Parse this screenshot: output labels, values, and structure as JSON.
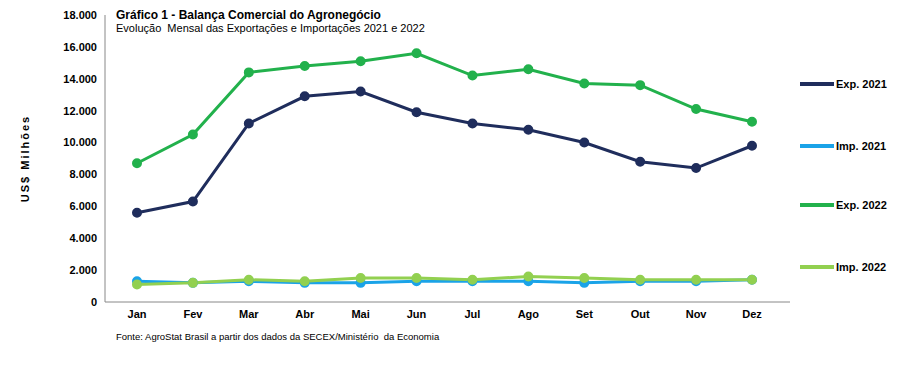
{
  "chart_data": {
    "type": "line",
    "title": "Gráfico 1 - Balança Comercial do Agronegócio",
    "subtitle": "Evolução  Mensal das Exportações e Importações 2021 e 2022",
    "source": "Fonte: AgroStat Brasil a partir dos dados da SECEX/Ministério  da Economia",
    "y_label": "US$ Milhões",
    "categories": [
      "Jan",
      "Fev",
      "Mar",
      "Abr",
      "Mai",
      "Jun",
      "Jul",
      "Ago",
      "Set",
      "Out",
      "Nov",
      "Dez"
    ],
    "series": [
      {
        "name": "Exp. 2021",
        "color": "#1f2d5c",
        "marker": "circle",
        "values": [
          5600,
          6300,
          11200,
          12900,
          13200,
          11900,
          11200,
          10800,
          10000,
          8800,
          8400,
          9800
        ]
      },
      {
        "name": "Imp. 2021",
        "color": "#1aa3e8",
        "marker": "circle",
        "values": [
          1300,
          1200,
          1300,
          1200,
          1200,
          1300,
          1300,
          1300,
          1200,
          1300,
          1300,
          1400
        ]
      },
      {
        "name": "Exp. 2022",
        "color": "#22b14c",
        "marker": "circle",
        "values": [
          8700,
          10500,
          14400,
          14800,
          15100,
          15600,
          14200,
          14600,
          13700,
          13600,
          12100,
          11300
        ]
      },
      {
        "name": "Imp. 2022",
        "color": "#92d050",
        "marker": "circle",
        "values": [
          1100,
          1200,
          1400,
          1300,
          1500,
          1500,
          1400,
          1600,
          1500,
          1400,
          1400,
          1400
        ]
      }
    ],
    "ylim": [
      0,
      18000
    ],
    "yticks": [
      0,
      {
        "value": 2000,
        "label": "2.000"
      },
      {
        "value": 4000,
        "label": "4.000"
      },
      {
        "value": 6000,
        "label": "6.000"
      },
      {
        "value": 8000,
        "label": "8.000"
      },
      {
        "value": 10000,
        "label": "10.000"
      },
      {
        "value": 12000,
        "label": "12.000"
      },
      {
        "value": 14000,
        "label": "14.000"
      },
      {
        "value": 16000,
        "label": "16.000"
      },
      {
        "value": 18000,
        "label": "18.000"
      }
    ],
    "grid": false,
    "legend": "right"
  }
}
